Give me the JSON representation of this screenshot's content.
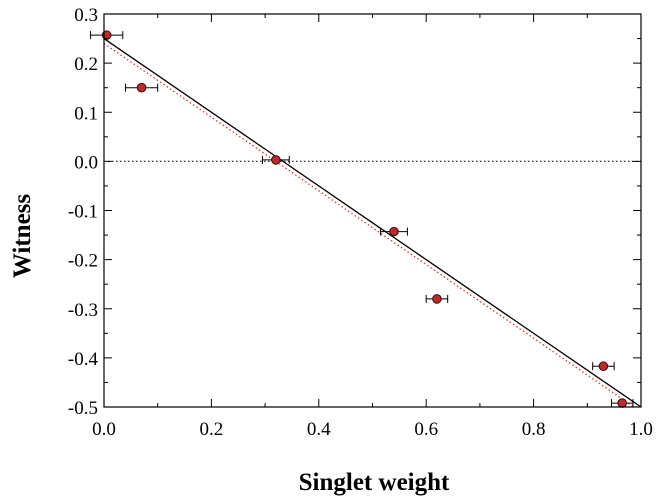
{
  "chart_data": {
    "type": "scatter",
    "title": "",
    "xlabel": "Singlet weight",
    "ylabel": "Witness",
    "xlim": [
      0.0,
      1.0
    ],
    "ylim": [
      -0.5,
      0.3
    ],
    "grid": false,
    "legend": "none",
    "xticks": [
      0.0,
      0.2,
      0.4,
      0.6,
      0.8,
      1.0
    ],
    "xtick_labels": [
      "0.0",
      "0.2",
      "0.4",
      "0.6",
      "0.8",
      "1.0"
    ],
    "yticks": [
      0.3,
      0.2,
      0.1,
      0.0,
      -0.1,
      -0.2,
      -0.3,
      -0.4,
      -0.5
    ],
    "ytick_labels": [
      "0.3",
      "0.2",
      "0.1",
      "0.0",
      "-0.1",
      "-0.2",
      "-0.3",
      "-0.4",
      "-0.5"
    ],
    "series": [
      {
        "type": "scatter",
        "marker": "circle",
        "color": "#c0282d",
        "points": [
          {
            "x": 0.005,
            "y": 0.257,
            "xerr": 0.03
          },
          {
            "x": 0.07,
            "y": 0.15,
            "xerr": 0.03
          },
          {
            "x": 0.32,
            "y": 0.003,
            "xerr": 0.025
          },
          {
            "x": 0.54,
            "y": -0.143,
            "xerr": 0.025
          },
          {
            "x": 0.62,
            "y": -0.28,
            "xerr": 0.02
          },
          {
            "x": 0.93,
            "y": -0.417,
            "xerr": 0.02
          },
          {
            "x": 0.965,
            "y": -0.492,
            "xerr": 0.02
          }
        ]
      },
      {
        "type": "line",
        "style": "solid",
        "color": "#000000",
        "points": [
          {
            "x": 0.0,
            "y": 0.25
          },
          {
            "x": 1.0,
            "y": -0.5
          }
        ]
      },
      {
        "type": "line",
        "style": "dotted",
        "color": "#e0342e",
        "points": [
          {
            "x": 0.0,
            "y": 0.24
          },
          {
            "x": 1.0,
            "y": -0.51
          }
        ]
      },
      {
        "type": "line",
        "style": "dotted",
        "color": "#333333",
        "points": [
          {
            "x": 0.0,
            "y": 0.0
          },
          {
            "x": 1.0,
            "y": 0.0
          }
        ]
      }
    ]
  }
}
